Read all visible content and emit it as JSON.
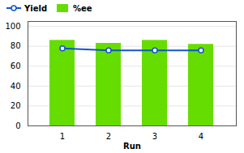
{
  "chart_data": {
    "type": "bar",
    "xlabel": "Run",
    "categories": [
      "1",
      "2",
      "3",
      "4"
    ],
    "series": [
      {
        "name": "Yield",
        "type": "line",
        "color": "#1155cc",
        "marker": "circle",
        "values": [
          78,
          76,
          76,
          76
        ]
      },
      {
        "name": "%ee",
        "type": "bar",
        "color": "#66dd00",
        "values": [
          86,
          83,
          86,
          82
        ]
      }
    ],
    "ylim": [
      0,
      105
    ],
    "yticks": [
      0,
      20,
      40,
      60,
      80,
      100
    ],
    "grid": true,
    "legend": "upper left"
  }
}
